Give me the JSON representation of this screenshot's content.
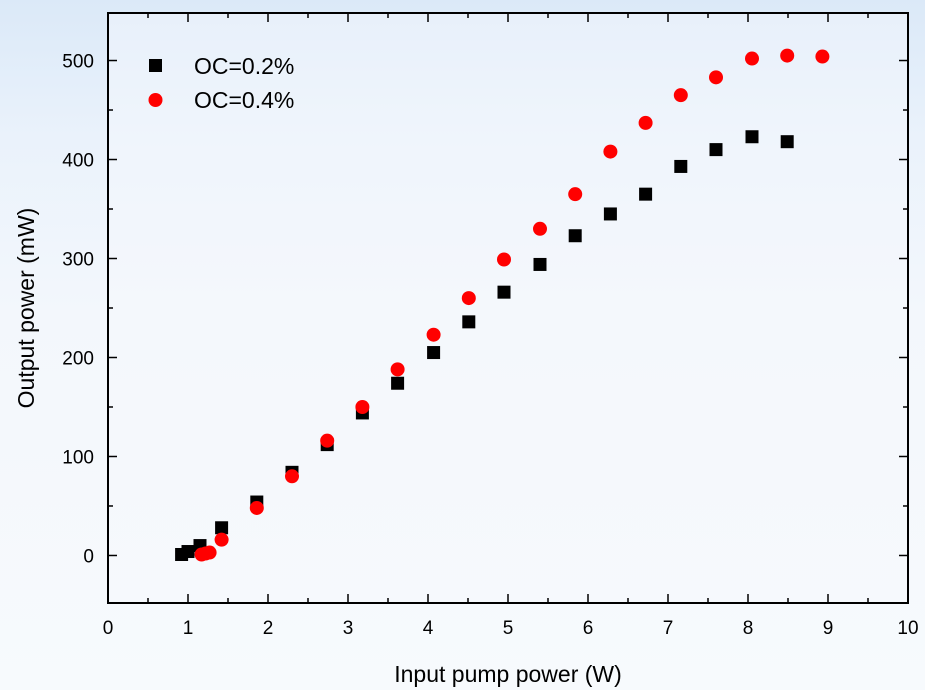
{
  "chart_data": {
    "type": "scatter",
    "xlabel": "Input pump power (W)",
    "ylabel": "Output power (mW)",
    "xlim": [
      0,
      10
    ],
    "ylim": [
      -48,
      548
    ],
    "xticks": [
      0,
      1,
      2,
      3,
      4,
      5,
      6,
      7,
      8,
      9,
      10
    ],
    "yticks": [
      0,
      100,
      200,
      300,
      400,
      500
    ],
    "grid": false,
    "legend_position": "top-left",
    "series": [
      {
        "name": "OC=0.2%",
        "marker": "square",
        "color": "#000000",
        "points": [
          [
            0.92,
            1
          ],
          [
            1.0,
            4
          ],
          [
            1.15,
            10
          ],
          [
            1.42,
            28
          ],
          [
            1.86,
            54
          ],
          [
            2.3,
            84
          ],
          [
            2.74,
            112
          ],
          [
            3.18,
            144
          ],
          [
            3.62,
            174
          ],
          [
            4.07,
            205
          ],
          [
            4.51,
            236
          ],
          [
            4.95,
            266
          ],
          [
            5.4,
            294
          ],
          [
            5.84,
            323
          ],
          [
            6.28,
            345
          ],
          [
            6.72,
            365
          ],
          [
            7.16,
            393
          ],
          [
            7.6,
            410
          ],
          [
            8.05,
            423
          ],
          [
            8.49,
            418
          ]
        ]
      },
      {
        "name": "OC=0.4%",
        "marker": "circle",
        "color": "#ff0000",
        "points": [
          [
            1.17,
            1
          ],
          [
            1.22,
            2
          ],
          [
            1.27,
            3
          ],
          [
            1.42,
            16
          ],
          [
            1.86,
            48
          ],
          [
            2.3,
            80
          ],
          [
            2.74,
            116
          ],
          [
            3.18,
            150
          ],
          [
            3.62,
            188
          ],
          [
            4.07,
            223
          ],
          [
            4.51,
            260
          ],
          [
            4.95,
            299
          ],
          [
            5.4,
            330
          ],
          [
            5.84,
            365
          ],
          [
            6.28,
            408
          ],
          [
            6.72,
            437
          ],
          [
            7.16,
            465
          ],
          [
            7.6,
            483
          ],
          [
            8.05,
            502
          ],
          [
            8.49,
            505
          ],
          [
            8.93,
            504
          ]
        ]
      }
    ]
  }
}
